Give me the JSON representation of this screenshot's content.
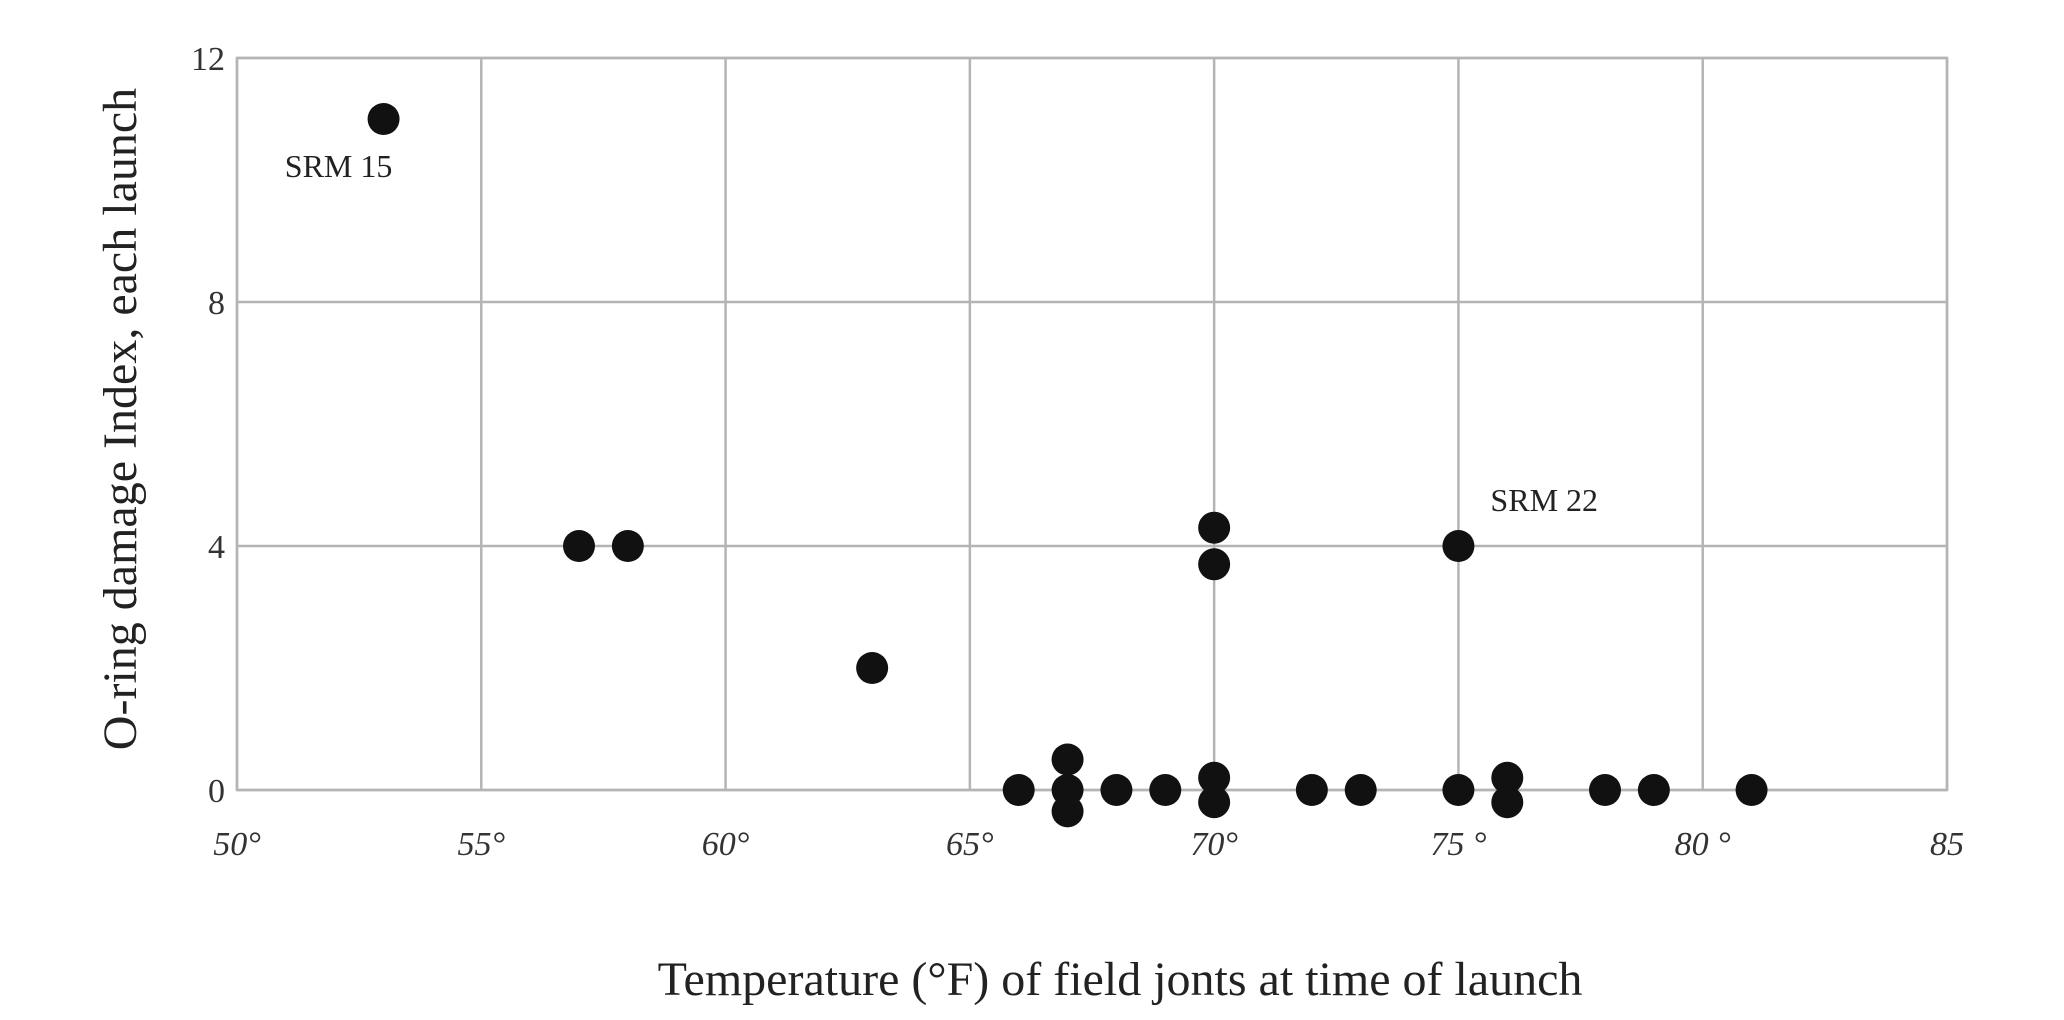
{
  "chart_data": {
    "type": "scatter",
    "title": "",
    "xlabel": "Temperature (°F) of field jonts at time of launch",
    "ylabel": "O-ring damage  Index, each launch",
    "xlim": [
      50,
      85
    ],
    "ylim": [
      0,
      12
    ],
    "x_ticks": [
      {
        "value": 50,
        "label": "50°"
      },
      {
        "value": 55,
        "label": "55°"
      },
      {
        "value": 60,
        "label": "60°"
      },
      {
        "value": 65,
        "label": "65°"
      },
      {
        "value": 70,
        "label": "70°"
      },
      {
        "value": 75,
        "label": "75 °"
      },
      {
        "value": 80,
        "label": "80 °"
      },
      {
        "value": 85,
        "label": "85"
      }
    ],
    "y_ticks": [
      {
        "value": 0,
        "label": "0"
      },
      {
        "value": 4,
        "label": "4"
      },
      {
        "value": 8,
        "label": "8"
      },
      {
        "value": 12,
        "label": "12"
      }
    ],
    "grid": true,
    "legend": "none",
    "marker_color": "#111111",
    "grid_color": "#b4b4b4",
    "points": [
      {
        "x": 53,
        "y": 11
      },
      {
        "x": 57,
        "y": 4
      },
      {
        "x": 58,
        "y": 4
      },
      {
        "x": 63,
        "y": 2
      },
      {
        "x": 66,
        "y": 0
      },
      {
        "x": 67,
        "y": 0.5
      },
      {
        "x": 67,
        "y": 0
      },
      {
        "x": 67,
        "y": -0.35
      },
      {
        "x": 68,
        "y": 0
      },
      {
        "x": 69,
        "y": 0
      },
      {
        "x": 70,
        "y": 4.3
      },
      {
        "x": 70,
        "y": 3.7
      },
      {
        "x": 70,
        "y": 0.2
      },
      {
        "x": 70,
        "y": -0.2
      },
      {
        "x": 72,
        "y": 0
      },
      {
        "x": 73,
        "y": 0
      },
      {
        "x": 75,
        "y": 4
      },
      {
        "x": 75,
        "y": 0
      },
      {
        "x": 76,
        "y": 0.2
      },
      {
        "x": 76,
        "y": -0.2
      },
      {
        "x": 78,
        "y": 0
      },
      {
        "x": 79,
        "y": 0
      },
      {
        "x": 81,
        "y": 0
      }
    ],
    "annotations": [
      {
        "text": "SRM 15",
        "x": 53,
        "y": 11
      },
      {
        "text": "SRM 22",
        "x": 75,
        "y": 4
      }
    ]
  }
}
